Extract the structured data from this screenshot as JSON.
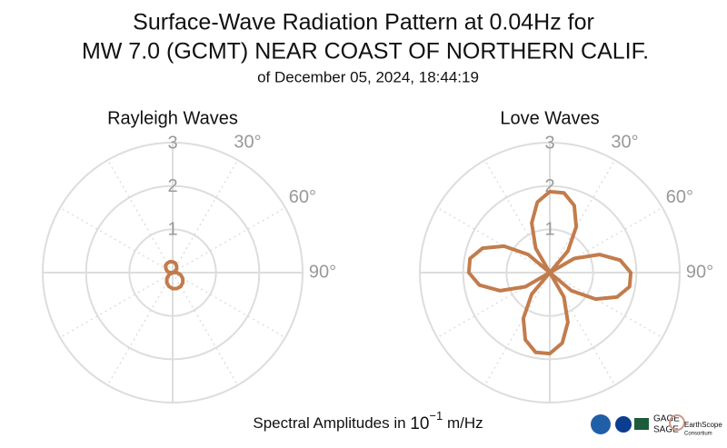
{
  "header": {
    "title_lines": [
      "Surface-Wave Radiation Pattern at 0.04Hz for",
      "MW 7.0 (GCMT) NEAR COAST OF NORTHERN CALIF."
    ],
    "subtitle": "of December 05, 2024, 18:44:19"
  },
  "chart_data": [
    {
      "type": "polar",
      "title": "Rayleigh Waves",
      "rlim": [
        0,
        3
      ],
      "rticks": [
        1,
        2,
        3
      ],
      "thetaticks": [
        {
          "value": 30,
          "label": "30°"
        },
        {
          "value": 60,
          "label": "60°"
        },
        {
          "value": 90,
          "label": "90°"
        }
      ],
      "series": [
        {
          "color": "#c27c4c",
          "theta": [
            0,
            15,
            30,
            45,
            60,
            75,
            90,
            105,
            120,
            135,
            150,
            165,
            180,
            195,
            210,
            225,
            240,
            255,
            270,
            285,
            300,
            315,
            330,
            345
          ],
          "values": [
            0.25,
            0.23,
            0.18,
            0.13,
            0.07,
            0,
            0.1,
            0.19,
            0.27,
            0.33,
            0.37,
            0.38,
            0.37,
            0.33,
            0.27,
            0.19,
            0.1,
            0,
            0.07,
            0.13,
            0.18,
            0.23,
            0.25,
            0.26
          ]
        }
      ]
    },
    {
      "type": "polar",
      "title": "Love Waves",
      "rlim": [
        0,
        3
      ],
      "rticks": [
        1,
        2,
        3
      ],
      "thetaticks": [
        {
          "value": 30,
          "label": "30°"
        },
        {
          "value": 60,
          "label": "60°"
        },
        {
          "value": 90,
          "label": "90°"
        }
      ],
      "series": [
        {
          "color": "#c27c4c",
          "theta": [
            0,
            10,
            20,
            30,
            40,
            50,
            60,
            70,
            80,
            90,
            100,
            110,
            120,
            130,
            140,
            150,
            160,
            170,
            180,
            190,
            200,
            210,
            220,
            230,
            240,
            250,
            260,
            270,
            280,
            290,
            300,
            310,
            320,
            330,
            340,
            350
          ],
          "values": [
            1.87,
            1.87,
            1.65,
            1.22,
            0.65,
            0,
            0.65,
            1.22,
            1.65,
            1.87,
            1.87,
            1.65,
            1.22,
            0.65,
            0,
            0.65,
            1.22,
            1.65,
            1.87,
            1.87,
            1.65,
            1.22,
            0.65,
            0,
            0.65,
            1.22,
            1.65,
            1.87,
            1.87,
            1.65,
            1.22,
            0.65,
            0,
            0.65,
            1.22,
            1.65
          ]
        }
      ]
    }
  ],
  "footer": {
    "prefix": "Spectral Amplitudes in ",
    "base": "10",
    "exponent": "−1",
    "unit": " m/Hz"
  },
  "logos": {
    "gage": "GAGE",
    "sage": "SAGE",
    "earthscope": "EarthScope",
    "consortium": "Consortium"
  }
}
